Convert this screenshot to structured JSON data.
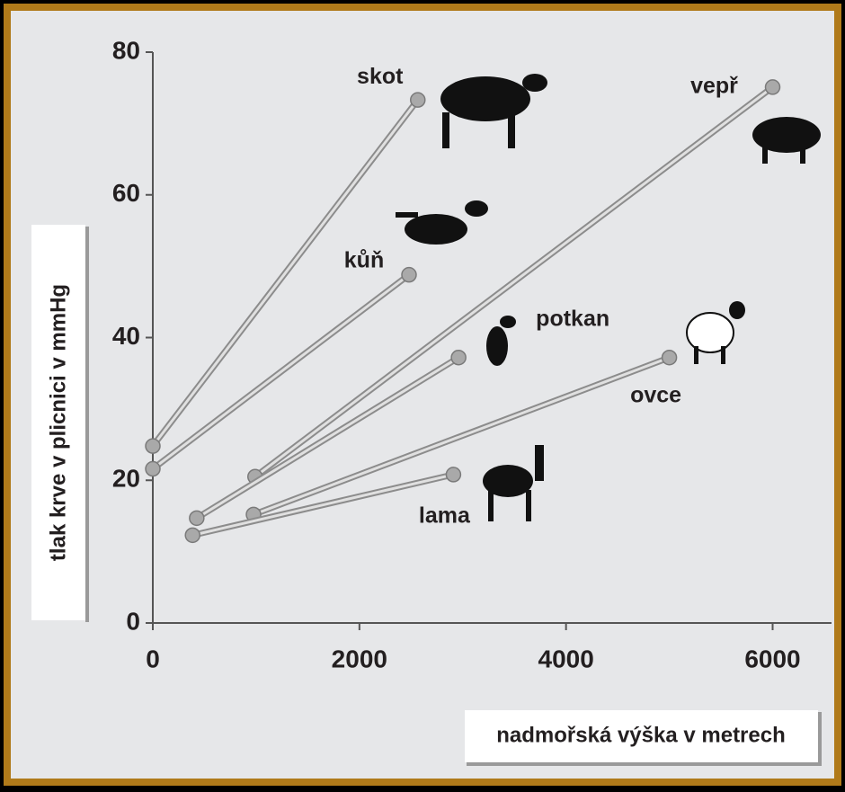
{
  "chart_data": {
    "type": "line",
    "x_label": "nadmořská výška v metrech",
    "y_label": "tlak krve v plicnici v mmHg",
    "xlim": [
      0,
      6570
    ],
    "xticks": [
      0,
      2000,
      4000,
      6000
    ],
    "ylim": [
      0,
      80
    ],
    "yticks": [
      0,
      20,
      40,
      60,
      80
    ],
    "color": "#a9a9a9",
    "series": [
      {
        "name": "skot",
        "x": [
          0,
          2565
        ],
        "values": [
          24.8,
          73.3
        ]
      },
      {
        "name": "kůň",
        "x": [
          0,
          2480
        ],
        "values": [
          21.6,
          48.8
        ]
      },
      {
        "name": "vepř",
        "x": [
          990,
          6000
        ],
        "values": [
          20.5,
          75.1
        ]
      },
      {
        "name": "potkan",
        "x": [
          425,
          2960
        ],
        "values": [
          14.7,
          37.2
        ]
      },
      {
        "name": "ovce",
        "x": [
          975,
          5000
        ],
        "values": [
          15.2,
          37.2
        ]
      },
      {
        "name": "lama",
        "x": [
          385,
          2910
        ],
        "values": [
          12.3,
          20.8
        ]
      }
    ]
  }
}
